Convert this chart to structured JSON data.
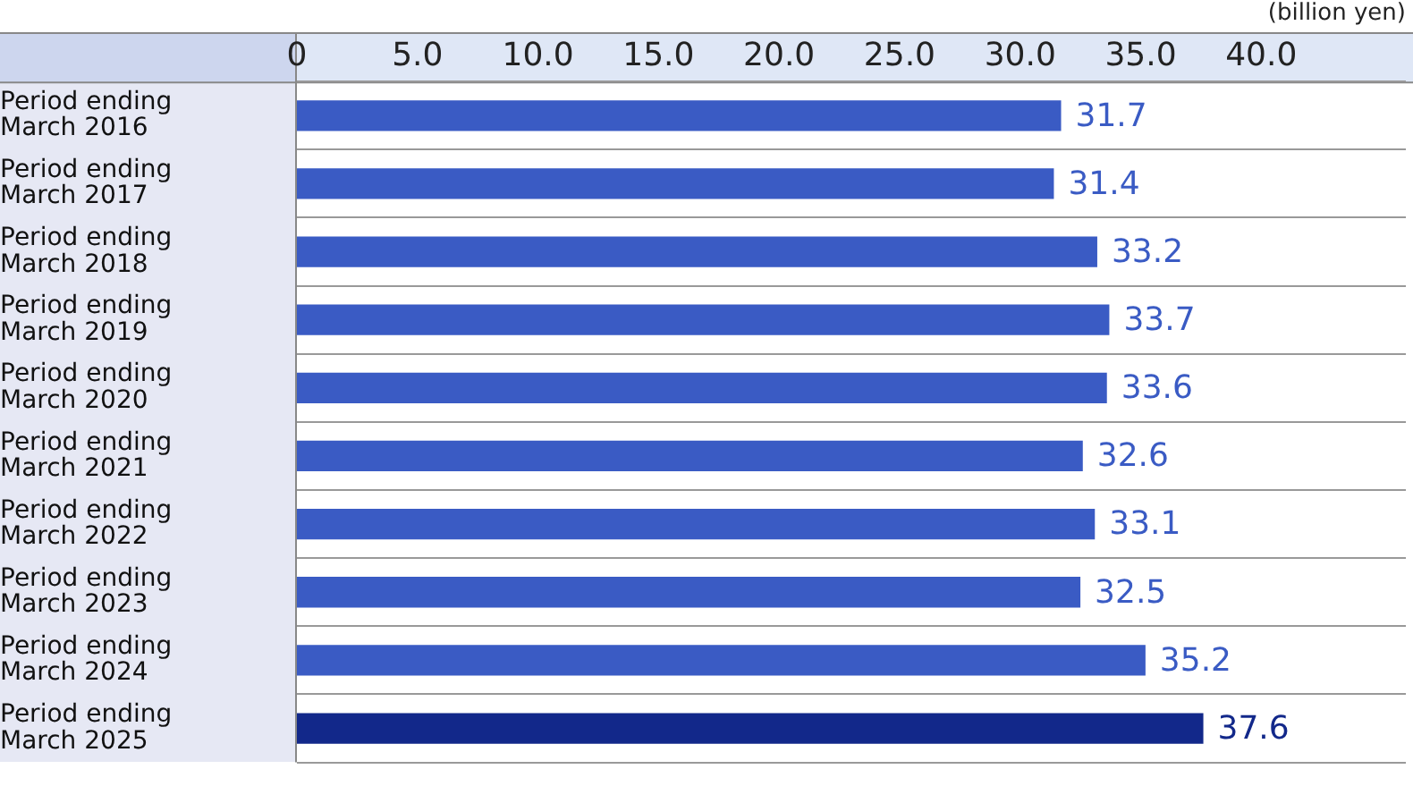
{
  "chart_data": {
    "type": "bar",
    "orientation": "horizontal",
    "categories": [
      "Period ending\nMarch 2016",
      "Period ending\nMarch 2017",
      "Period ending\nMarch 2018",
      "Period ending\nMarch 2019",
      "Period ending\nMarch 2020",
      "Period ending\nMarch 2021",
      "Period ending\nMarch 2022",
      "Period ending\nMarch 2023",
      "Period ending\nMarch 2024",
      "Period ending\nMarch 2025"
    ],
    "values": [
      31.7,
      31.4,
      33.2,
      33.7,
      33.6,
      32.6,
      33.1,
      32.5,
      35.2,
      37.6
    ],
    "colors": [
      "#3a5bc4",
      "#3a5bc4",
      "#3a5bc4",
      "#3a5bc4",
      "#3a5bc4",
      "#3a5bc4",
      "#3a5bc4",
      "#3a5bc4",
      "#3a5bc4",
      "#12288a"
    ],
    "xlim": [
      0,
      46
    ],
    "xticks": [
      0,
      {
        "value": 5,
        "label": "5.0"
      },
      {
        "value": 10,
        "label": "10.0"
      },
      {
        "value": 15,
        "label": "15.0"
      },
      {
        "value": 20,
        "label": "20.0"
      },
      {
        "value": 25,
        "label": "25.0"
      },
      {
        "value": 30,
        "label": "30.0"
      },
      {
        "value": 35,
        "label": "35.0"
      },
      {
        "value": 40,
        "label": "40.0"
      }
    ],
    "data_labels": true,
    "grid": "y",
    "legend": false,
    "annotations": [
      "(billion yen)"
    ]
  }
}
